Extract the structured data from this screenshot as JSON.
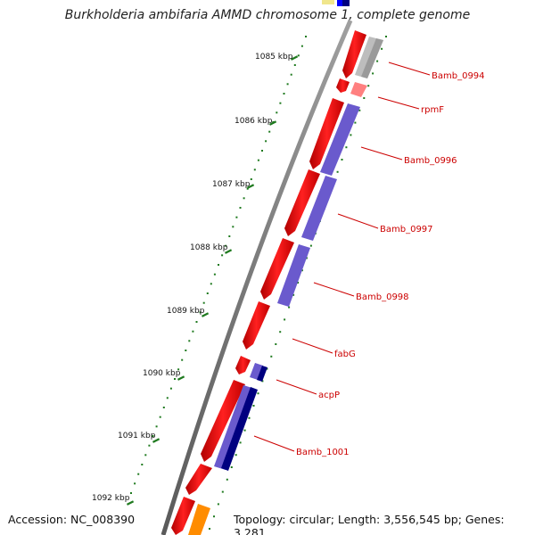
{
  "title": "Burkholderia ambifaria AMMD chromosome 1, complete genome",
  "footer": {
    "accession": "Accession: NC_008390",
    "summary": "Topology: circular; Length: 3,556,545 bp; Genes: 3,281"
  },
  "ticks": [
    {
      "label": "1085 kbp"
    },
    {
      "label": "1086 kbp"
    },
    {
      "label": "1087 kbp"
    },
    {
      "label": "1088 kbp"
    },
    {
      "label": "1089 kbp"
    },
    {
      "label": "1090 kbp"
    },
    {
      "label": "1091 kbp"
    },
    {
      "label": "1092 kbp"
    }
  ],
  "genes": [
    {
      "label": "Bamb_0994"
    },
    {
      "label": "rpmF"
    },
    {
      "label": "Bamb_0996"
    },
    {
      "label": "Bamb_0997"
    },
    {
      "label": "Bamb_0998"
    },
    {
      "label": "fabG"
    },
    {
      "label": "acpP"
    },
    {
      "label": "Bamb_1001"
    }
  ],
  "colors": {
    "backbone": "#8c8c8c",
    "cds_forward": "#ff0000",
    "cds_reverse": "#ff0000",
    "gene_feature": "#6a5acd",
    "gene_feature_dark": "#000080",
    "unknown_feature": "#b4b4b4",
    "trna_feature": "#ff8080",
    "orange_feature": "#ff8c00",
    "blue_feature": "#0000ff",
    "tick": "#1f7a1f",
    "label": "#cc0000"
  }
}
